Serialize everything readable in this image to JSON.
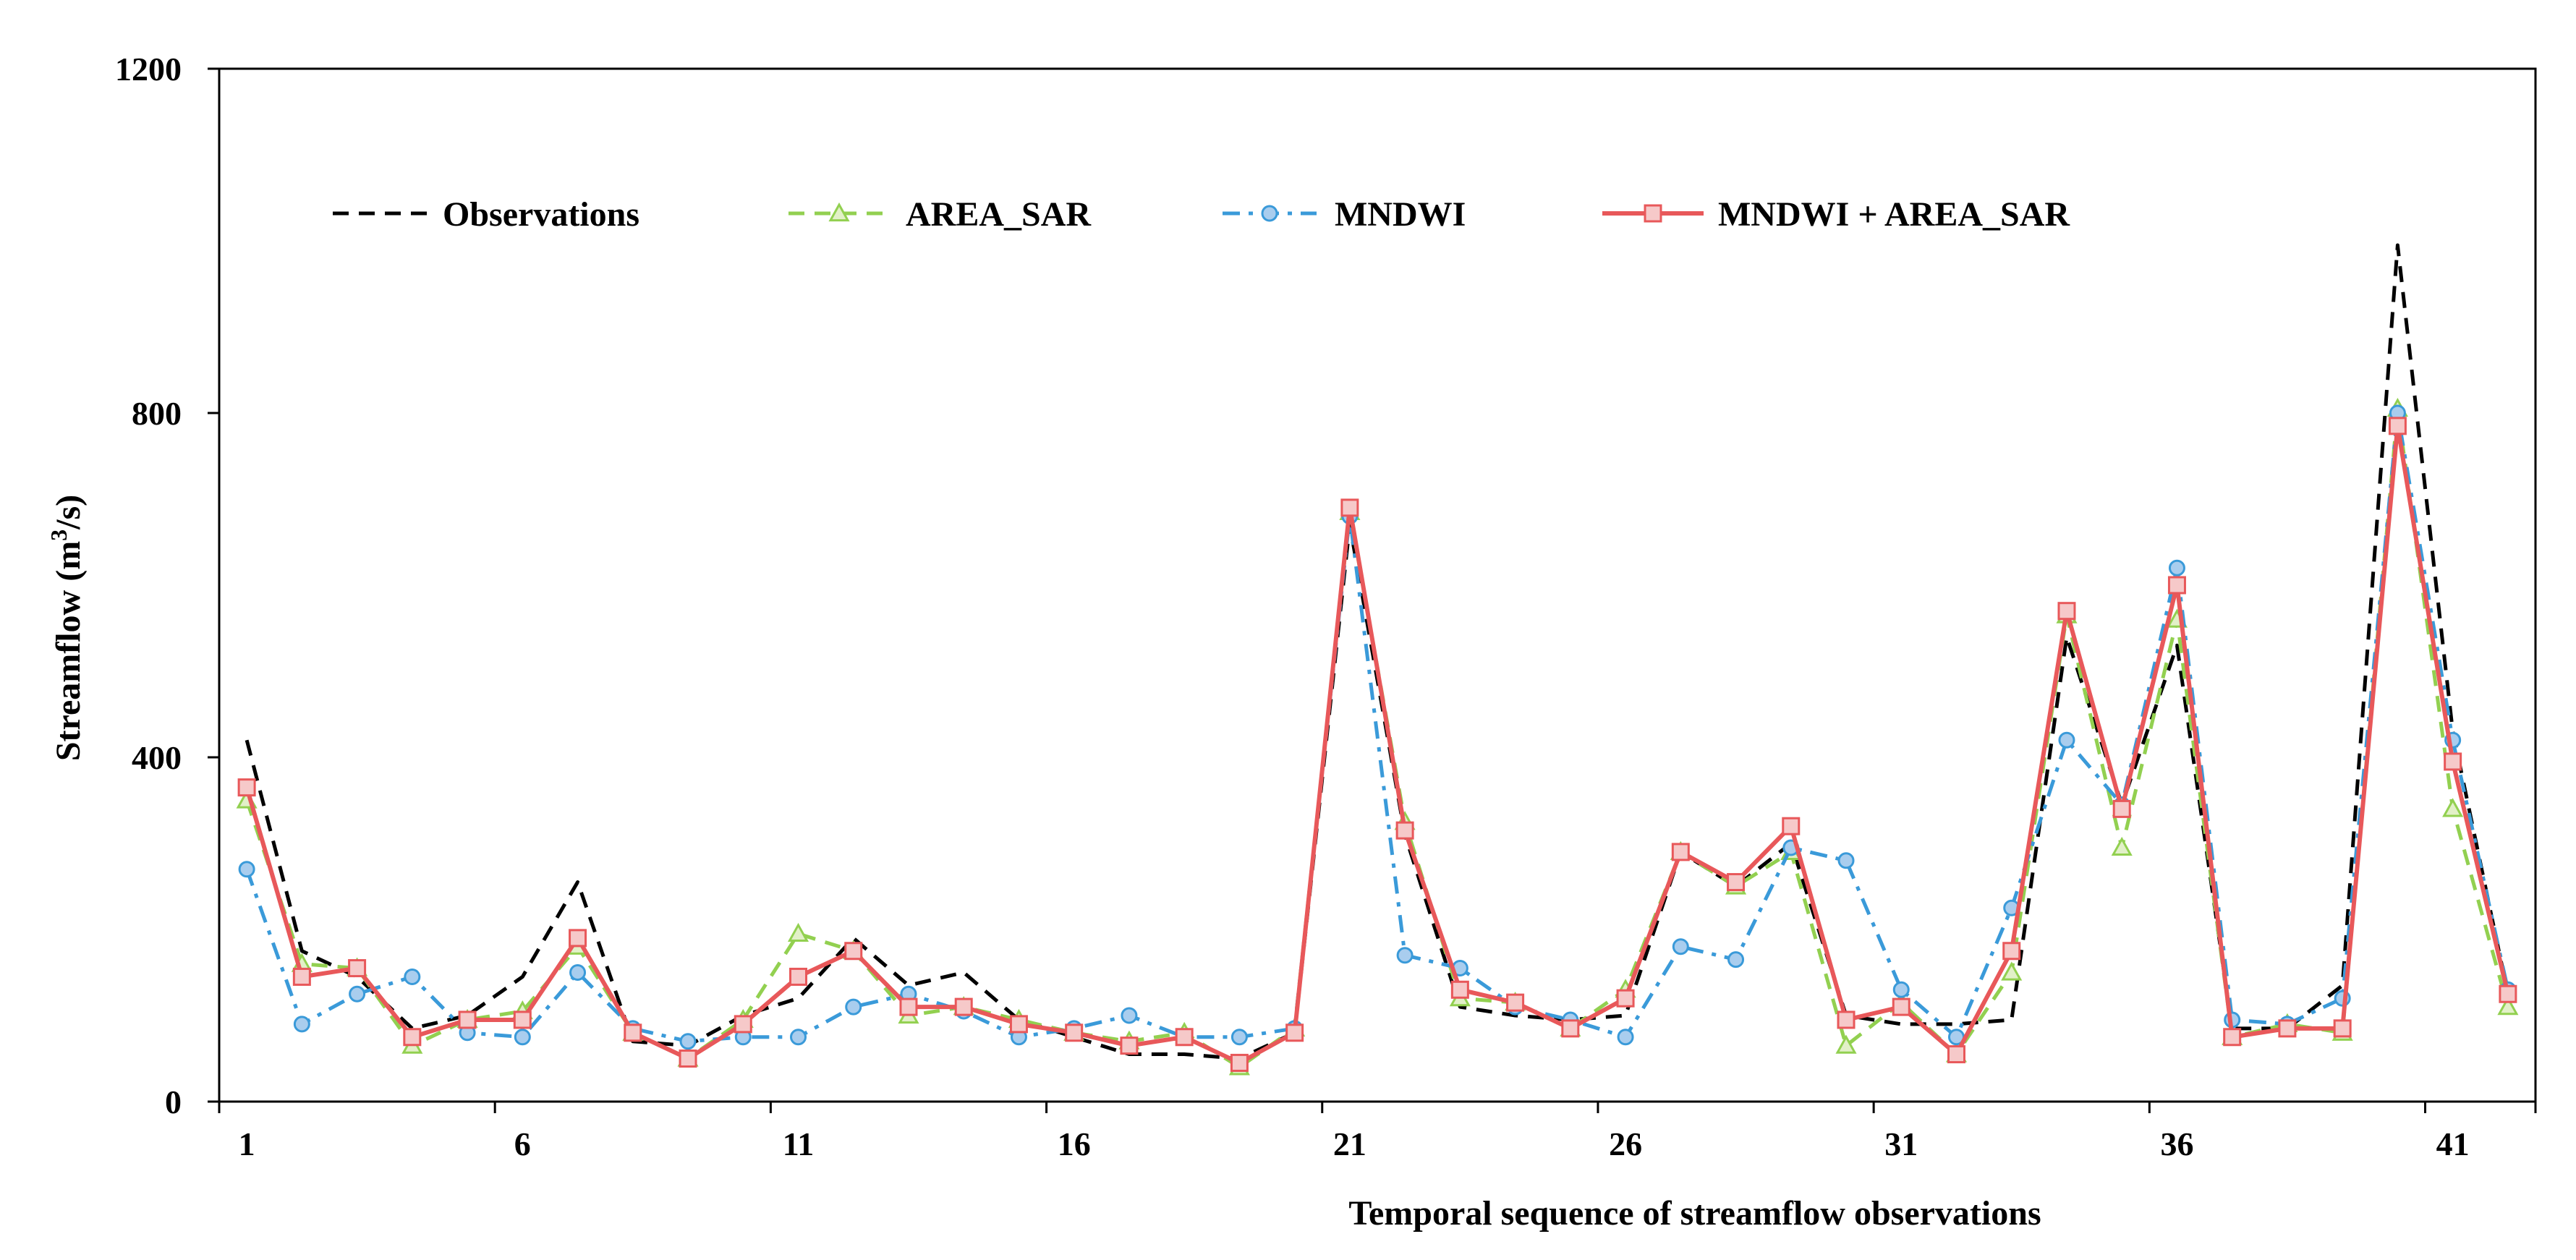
{
  "chart_data": {
    "type": "line",
    "title": "",
    "xlabel": "Temporal sequence of streamflow observations",
    "ylabel": "Streamflow (m³/s)",
    "ylabel_parts": {
      "prefix": "Streamflow (m",
      "sup": "3",
      "suffix": "/s)"
    },
    "xlim": [
      0.5,
      42.5
    ],
    "ylim": [
      0,
      1200
    ],
    "x_ticks": [
      1,
      6,
      11,
      16,
      21,
      26,
      31,
      36,
      41
    ],
    "y_ticks": [
      0,
      400,
      800,
      1200
    ],
    "x_boundaries": [
      0.5,
      5.5,
      10.5,
      15.5,
      20.5,
      25.5,
      30.5,
      35.5,
      40.5,
      42.5
    ],
    "grid": false,
    "legend_position": "top, single row",
    "x": [
      1,
      2,
      3,
      4,
      5,
      6,
      7,
      8,
      9,
      10,
      11,
      12,
      13,
      14,
      15,
      16,
      17,
      18,
      19,
      20,
      21,
      22,
      23,
      24,
      25,
      26,
      27,
      28,
      29,
      30,
      31,
      32,
      33,
      34,
      35,
      36,
      37,
      38,
      39,
      40,
      41,
      42
    ],
    "series": [
      {
        "name": "Observations",
        "color": "#000000",
        "dash": "dashed",
        "marker": "none",
        "values": [
          420,
          175,
          145,
          85,
          100,
          145,
          255,
          70,
          65,
          100,
          120,
          190,
          135,
          150,
          95,
          75,
          55,
          55,
          50,
          80,
          670,
          310,
          110,
          100,
          95,
          100,
          290,
          250,
          300,
          100,
          90,
          90,
          95,
          540,
          345,
          530,
          85,
          85,
          135,
          995,
          430,
          125
        ]
      },
      {
        "name": "AREA_SAR",
        "color": "#92D050",
        "dash": "dashed",
        "marker": "triangle",
        "values": [
          350,
          160,
          155,
          65,
          95,
          105,
          180,
          80,
          50,
          95,
          195,
          175,
          100,
          110,
          95,
          80,
          70,
          80,
          40,
          85,
          685,
          325,
          120,
          115,
          85,
          130,
          290,
          250,
          290,
          65,
          115,
          55,
          150,
          565,
          295,
          560,
          75,
          90,
          80,
          805,
          340,
          110
        ]
      },
      {
        "name": "MNDWI",
        "color": "#3A9AD9",
        "dash": "dashdot",
        "marker": "circle",
        "values": [
          270,
          90,
          125,
          145,
          80,
          75,
          150,
          85,
          70,
          75,
          75,
          110,
          125,
          105,
          75,
          85,
          100,
          75,
          75,
          85,
          680,
          170,
          155,
          110,
          95,
          75,
          180,
          165,
          295,
          280,
          130,
          75,
          225,
          420,
          345,
          620,
          95,
          90,
          120,
          800,
          420,
          130
        ]
      },
      {
        "name": "MNDWI + AREA_SAR",
        "color": "#E8585A",
        "dash": "solid",
        "marker": "square",
        "values": [
          365,
          145,
          155,
          75,
          95,
          95,
          190,
          80,
          50,
          90,
          145,
          175,
          110,
          110,
          90,
          80,
          65,
          75,
          45,
          80,
          690,
          315,
          130,
          115,
          85,
          120,
          290,
          255,
          320,
          95,
          110,
          55,
          175,
          570,
          340,
          600,
          75,
          85,
          85,
          785,
          395,
          125
        ]
      }
    ]
  }
}
